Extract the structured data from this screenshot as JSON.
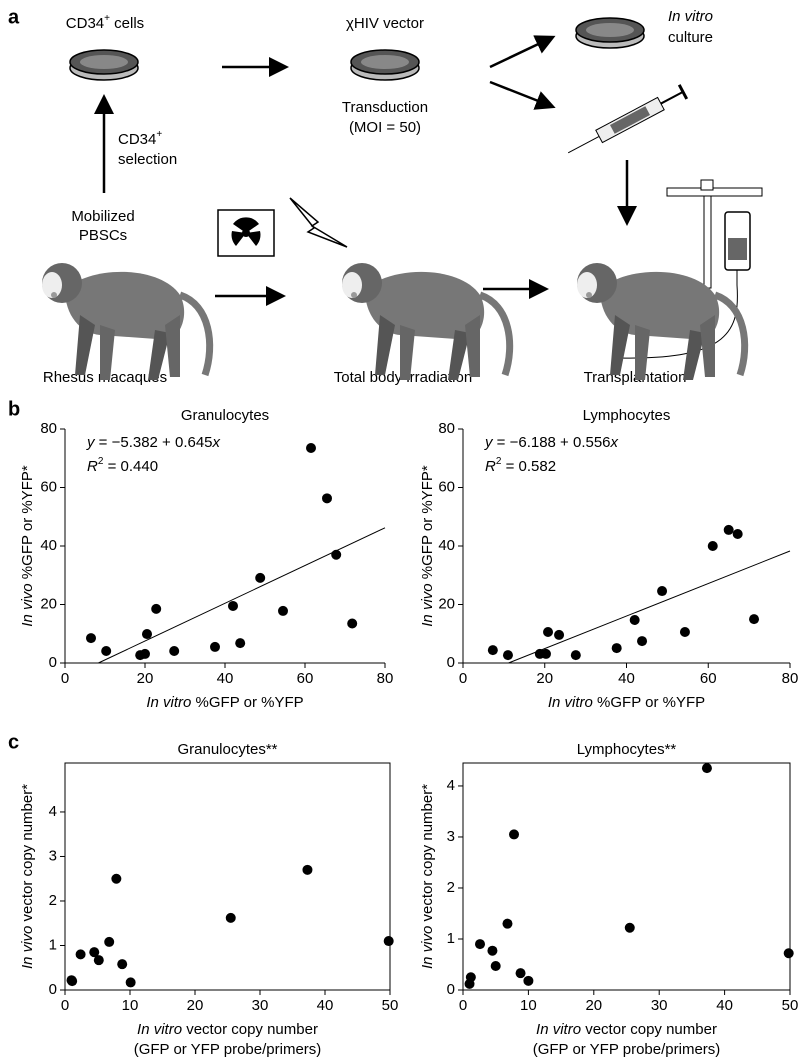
{
  "panel_a": {
    "label": "a",
    "cells": {
      "name": "CD34",
      "sup": "+",
      "rest": " cells"
    },
    "vector": "χHIV vector",
    "culture": {
      "italic": "In vitro",
      "rest": "culture"
    },
    "transduction": "Transduction",
    "moi": "(MOI = 50)",
    "selection": {
      "name": "CD34",
      "sup": "+",
      "rest": "selection"
    },
    "mobilized": [
      "Mobilized",
      "PBSCs"
    ],
    "macaques": "Rhesus macaques",
    "irradiation": "Total body irradiation",
    "transplantation": "Transplantation"
  },
  "panel_labels": {
    "b": "b",
    "c": "c"
  },
  "chart_data": [
    {
      "type": "scatter",
      "title": "Granulocytes",
      "color": "#000000",
      "box": false,
      "x": [
        6.5,
        10.3,
        18.8,
        20,
        20.5,
        22.8,
        27.3,
        37.5,
        42,
        43.8,
        48.8,
        54.5,
        61.5,
        65.5,
        67.8,
        71.8
      ],
      "values": [
        8.5,
        4.1,
        2.7,
        3.1,
        9.9,
        18.5,
        4.1,
        5.5,
        19.5,
        6.8,
        29.1,
        17.8,
        73.5,
        56.3,
        37,
        13.5
      ],
      "xlim": [
        0,
        80
      ],
      "ylim": [
        0,
        80
      ],
      "xticks": [
        0,
        20,
        40,
        60,
        80
      ],
      "yticks": [
        0,
        20,
        40,
        60,
        80
      ],
      "x_label": {
        "italic": "In vitro",
        "rest": " %GFP or %YFP"
      },
      "y_label": {
        "italic": "In vivo",
        "rest": " %GFP or %YFP*"
      },
      "equation": {
        "y": "y",
        "mid": " = −5.382 + 0.645",
        "x": "x"
      },
      "r_squared": {
        "R": "R",
        "power": "2",
        "rest": " = 0.440"
      },
      "fit": {
        "intercept": -5.382,
        "slope": 0.645
      }
    },
    {
      "type": "scatter",
      "title": "Lymphocytes",
      "color": "#000000",
      "box": false,
      "x": [
        7.3,
        11,
        18.8,
        20.3,
        20.8,
        23.5,
        27.6,
        37.6,
        42,
        43.8,
        48.7,
        54.3,
        61.1,
        65,
        67.2,
        71.2
      ],
      "values": [
        4.4,
        2.7,
        3.1,
        3.1,
        10.6,
        9.6,
        2.7,
        5.1,
        14.7,
        7.5,
        24.6,
        10.6,
        40,
        45.5,
        44.1,
        15
      ],
      "xlim": [
        0,
        80
      ],
      "ylim": [
        0,
        80
      ],
      "xticks": [
        0,
        20,
        40,
        60,
        80
      ],
      "yticks": [
        0,
        20,
        40,
        60,
        80
      ],
      "x_label": {
        "italic": "In vitro",
        "rest": " %GFP or %YFP"
      },
      "y_label": {
        "italic": "In vivo",
        "rest": " %GFP or %YFP*"
      },
      "equation": {
        "y": "y",
        "mid": " = −6.188 + 0.556",
        "x": "x"
      },
      "r_squared": {
        "R": "R",
        "power": "2",
        "rest": " = 0.582"
      },
      "fit": {
        "intercept": -6.188,
        "slope": 0.556
      }
    },
    {
      "type": "scatter",
      "title": "Granulocytes**",
      "color": "#000000",
      "box": true,
      "x": [
        1,
        1.1,
        2.4,
        4.5,
        5.2,
        6.8,
        7.9,
        8.8,
        10.1,
        25.5,
        37.3,
        49.8
      ],
      "values": [
        0.22,
        0.2,
        0.8,
        0.85,
        0.67,
        1.08,
        2.5,
        0.58,
        0.17,
        1.62,
        2.7,
        1.1
      ],
      "xlim": [
        0,
        50
      ],
      "ylim": [
        0,
        5.1
      ],
      "xticks": [
        0,
        10,
        20,
        30,
        40,
        50
      ],
      "yticks": [
        0,
        1,
        2,
        3,
        4
      ],
      "x_label": {
        "italic": "In vitro",
        "rest": " vector copy number"
      },
      "x_label_2": "(GFP or YFP probe/primers)",
      "y_label": {
        "italic": "In vivo",
        "rest": " vector copy number*"
      }
    },
    {
      "type": "scatter",
      "title": "Lymphocytes**",
      "color": "#000000",
      "box": true,
      "x": [
        1,
        1.2,
        2.6,
        4.5,
        5,
        6.8,
        7.8,
        8.8,
        10,
        25.5,
        37.3,
        49.8
      ],
      "values": [
        0.12,
        0.25,
        0.9,
        0.77,
        0.47,
        1.3,
        3.05,
        0.33,
        0.18,
        1.22,
        4.35,
        0.72
      ],
      "xlim": [
        0,
        50
      ],
      "ylim": [
        0,
        4.45
      ],
      "xticks": [
        0,
        10,
        20,
        30,
        40,
        50
      ],
      "yticks": [
        0,
        1,
        2,
        3,
        4
      ],
      "x_label": {
        "italic": "In vitro",
        "rest": " vector copy number"
      },
      "x_label_2": "(GFP or YFP probe/primers)",
      "y_label": {
        "italic": "In vivo",
        "rest": " vector copy number*"
      }
    }
  ]
}
